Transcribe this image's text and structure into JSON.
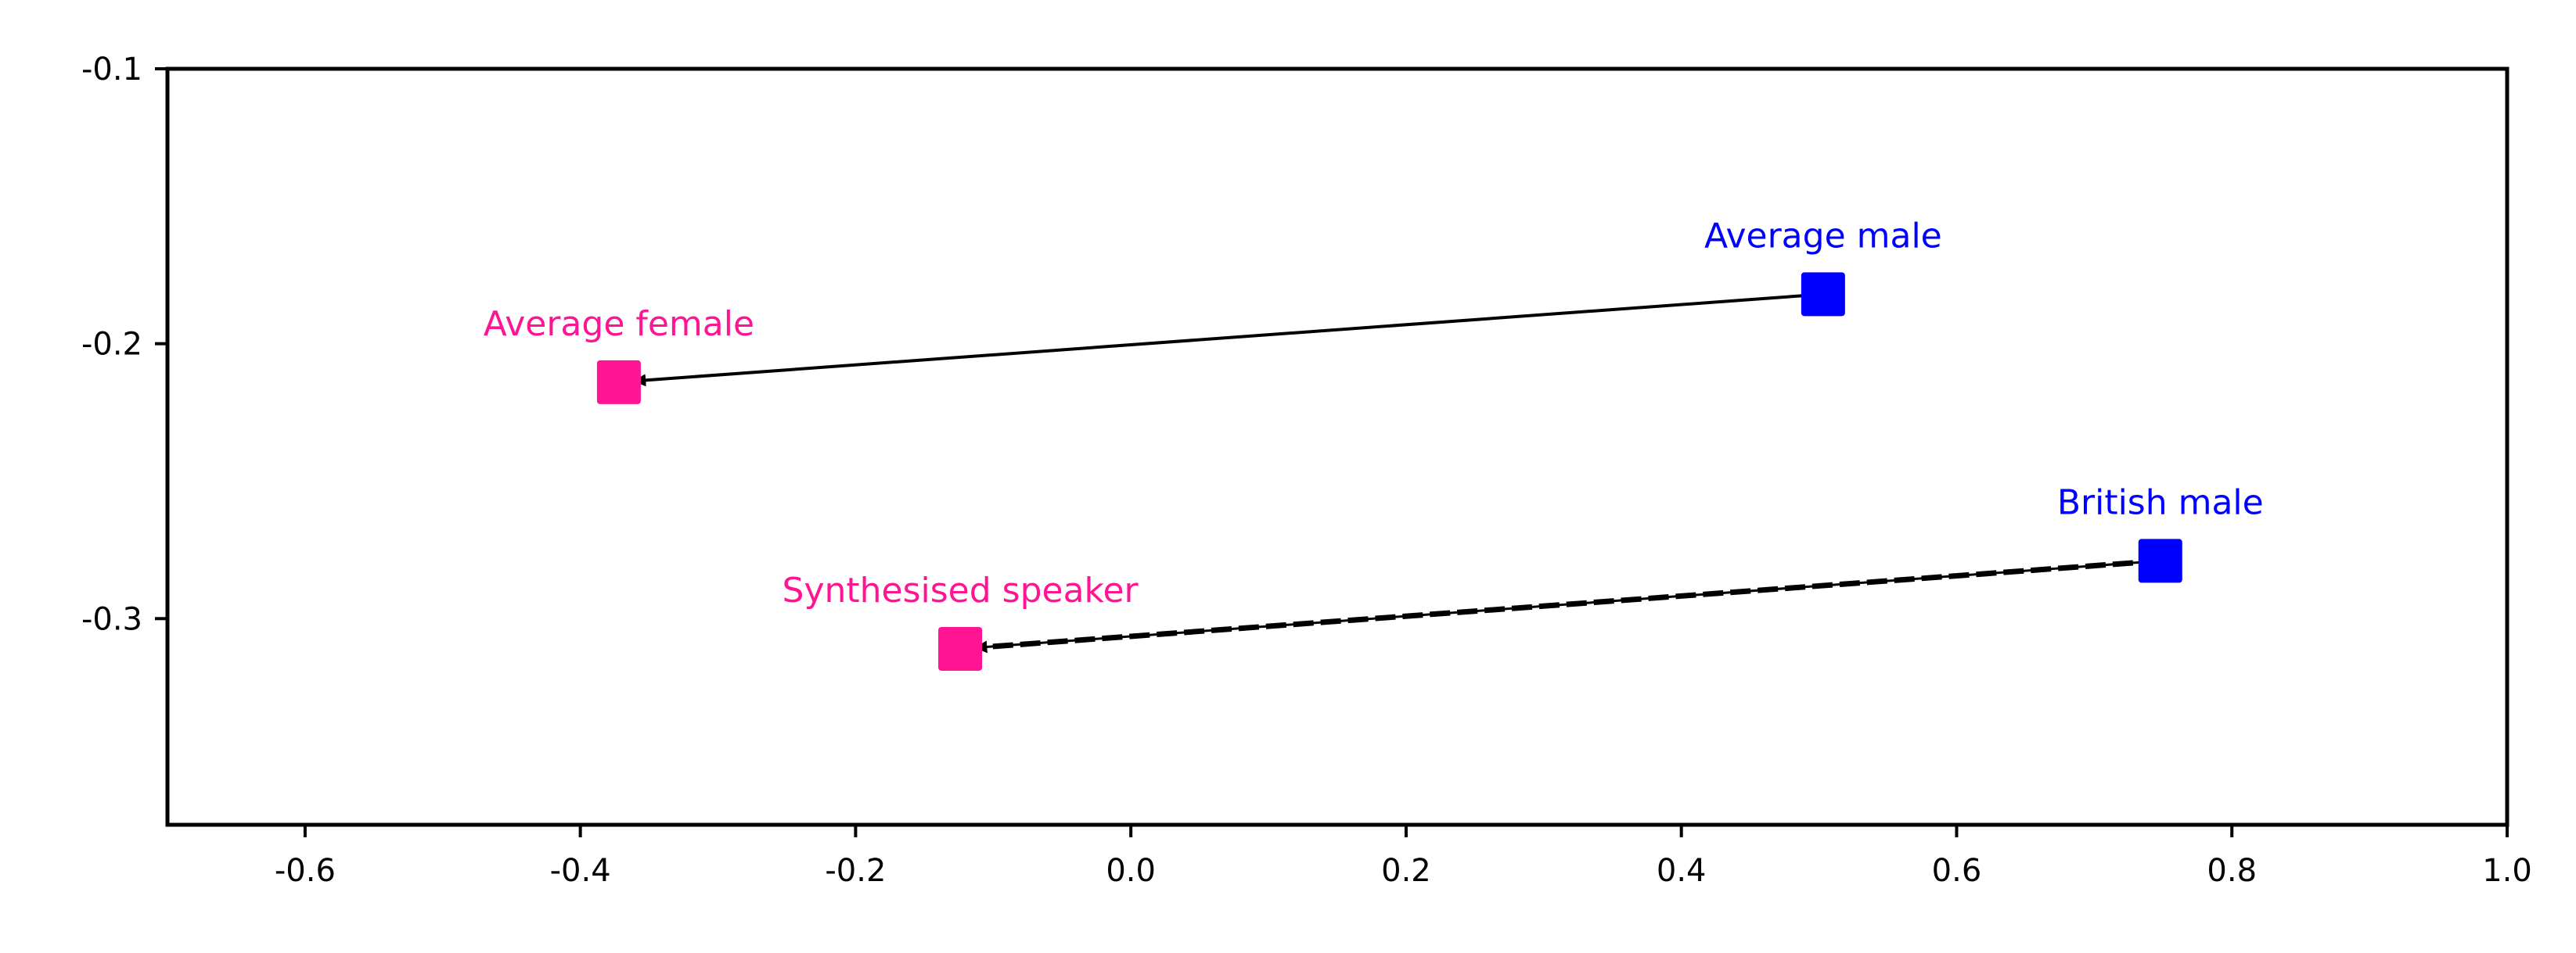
{
  "chart_data": {
    "type": "scatter",
    "title": "",
    "xlabel": "",
    "ylabel": "",
    "xlim": [
      -0.7,
      1.0
    ],
    "ylim": [
      -0.375,
      -0.1
    ],
    "xticks": [
      -0.6,
      -0.4,
      -0.2,
      0.0,
      0.2,
      0.4,
      0.6,
      0.8,
      1.0
    ],
    "xtick_labels": [
      "-0.6",
      "-0.4",
      "-0.2",
      "0.0",
      "0.2",
      "0.4",
      "0.6",
      "0.8",
      "1.0"
    ],
    "yticks": [
      -0.1,
      -0.2,
      -0.3
    ],
    "ytick_labels": [
      "-0.1",
      "-0.2",
      "-0.3"
    ],
    "grid": false,
    "colors": {
      "female": "#ff1493",
      "male": "#0000ff",
      "arrow": "#000000"
    },
    "points": [
      {
        "label": "Average male",
        "x": 0.503,
        "y": -0.182,
        "color": "#0000ff"
      },
      {
        "label": "Average female",
        "x": -0.372,
        "y": -0.214,
        "color": "#ff1493"
      },
      {
        "label": "British male",
        "x": 0.748,
        "y": -0.279,
        "color": "#0000ff"
      },
      {
        "label": "Synthesised speaker",
        "x": -0.124,
        "y": -0.311,
        "color": "#ff1493"
      }
    ],
    "arrows": [
      {
        "from": "Average male",
        "to": "Average female",
        "style": "solid"
      },
      {
        "from": "British male",
        "to": "Synthesised speaker",
        "style": "dashed"
      }
    ]
  }
}
